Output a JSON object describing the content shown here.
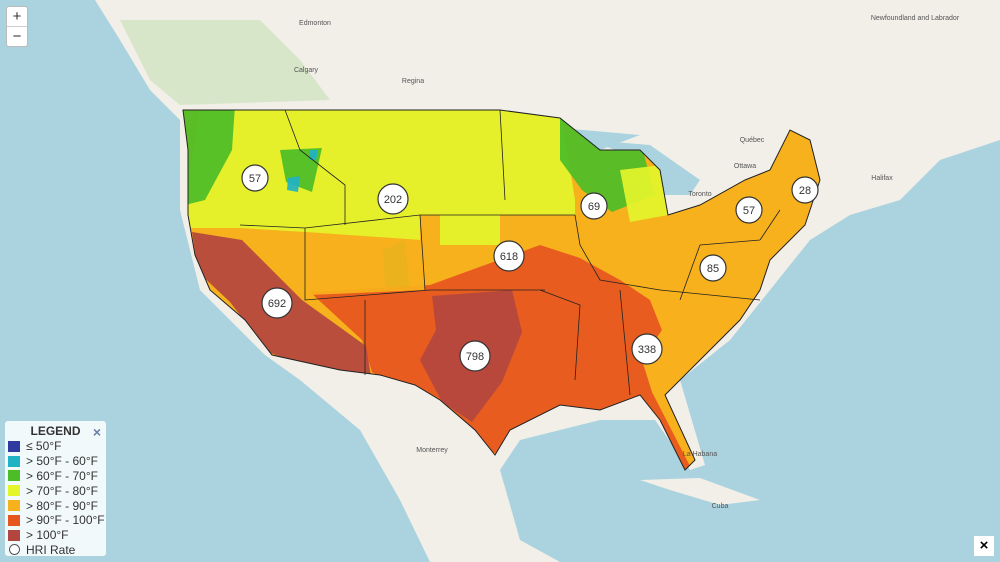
{
  "zoom_controls": {
    "zoom_in": "+",
    "zoom_out": "−"
  },
  "legend": {
    "title": "LEGEND",
    "close": "×",
    "items": [
      {
        "label": "≤ 50°F",
        "color": "#2e3a9f"
      },
      {
        "label": "> 50°F - 60°F",
        "color": "#1fb3c4"
      },
      {
        "label": "> 60°F - 70°F",
        "color": "#4cbd27"
      },
      {
        "label": "> 70°F - 80°F",
        "color": "#e3f52b"
      },
      {
        "label": "> 80°F - 90°F",
        "color": "#f7b11c"
      },
      {
        "label": "> 90°F - 100°F",
        "color": "#e6561f"
      },
      {
        "label": "> 100°F",
        "color": "#b3453f"
      }
    ],
    "marker_label": "HRI Rate"
  },
  "markers": [
    {
      "value": 57
    },
    {
      "value": 202
    },
    {
      "value": 69
    },
    {
      "value": 28
    },
    {
      "value": 57
    },
    {
      "value": 85
    },
    {
      "value": 618
    },
    {
      "value": 692
    },
    {
      "value": 798
    },
    {
      "value": 338
    }
  ],
  "place_labels": [
    "Edmonton",
    "Calgary",
    "Regina",
    "Québec",
    "Ottawa",
    "Toronto",
    "Halifax",
    "Newfoundland and Labrador",
    "Monterrey",
    "La Habana",
    "Cuba"
  ],
  "close_button": "×"
}
